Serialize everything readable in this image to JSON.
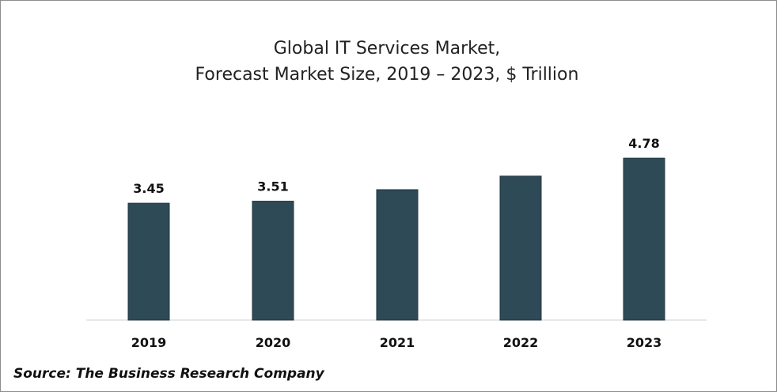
{
  "chart_data": {
    "type": "bar",
    "title": {
      "line1": "Global IT Services Market,",
      "line2": "Forecast Market Size, 2019 – 2023, $ Trillion"
    },
    "categories": [
      "2019",
      "2020",
      "2021",
      "2022",
      "2023"
    ],
    "values": [
      3.45,
      3.51,
      3.85,
      4.25,
      4.78
    ],
    "data_labels": [
      "3.45",
      "3.51",
      "",
      "",
      "4.78"
    ],
    "bar_color": "#2e4a57",
    "grid": false,
    "legend": "none"
  },
  "source": "Source: The Business Research Company"
}
